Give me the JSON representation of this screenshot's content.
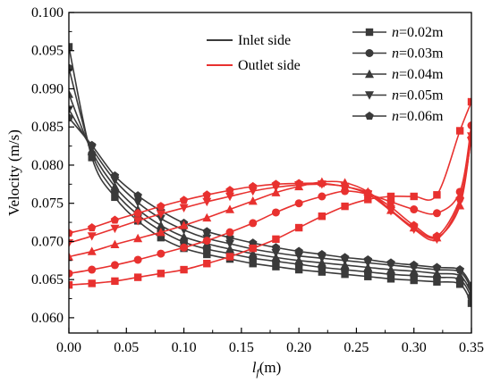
{
  "chart_data": {
    "type": "line",
    "xlabel_main": "l",
    "xlabel_sub": "f",
    "xlabel_unit": "(m)",
    "ylabel": "Velocity (m/s)",
    "xlim": [
      0.0,
      0.35
    ],
    "ylim": [
      0.058,
      0.1
    ],
    "xticks": [
      "0.00",
      "0.05",
      "0.10",
      "0.15",
      "0.20",
      "0.25",
      "0.30",
      "0.35"
    ],
    "yticks": [
      "0.060",
      "0.065",
      "0.070",
      "0.075",
      "0.080",
      "0.085",
      "0.090",
      "0.095",
      "0.100"
    ],
    "grid": false,
    "sides": [
      {
        "label": "Inlet side",
        "color": "#3a3a3a"
      },
      {
        "label": "Outlet side",
        "color": "#e8312f"
      }
    ],
    "legend_position": "top-right",
    "legend_prefix": "n",
    "legend_suffix": "=0.02m",
    "series": [
      {
        "name": "n=0.02m",
        "n_label": "n",
        "value_label": "=0.02m",
        "marker": "square",
        "inlet": {
          "x": [
            0.0,
            0.02,
            0.04,
            0.06,
            0.08,
            0.1,
            0.12,
            0.14,
            0.16,
            0.18,
            0.2,
            0.22,
            0.24,
            0.26,
            0.28,
            0.3,
            0.32,
            0.34,
            0.35
          ],
          "y": [
            0.0955,
            0.081,
            0.0758,
            0.0727,
            0.0705,
            0.0691,
            0.0683,
            0.0677,
            0.0671,
            0.0667,
            0.0663,
            0.066,
            0.0657,
            0.0654,
            0.0651,
            0.0649,
            0.0647,
            0.0644,
            0.0619
          ]
        },
        "outlet": {
          "x": [
            0.0,
            0.02,
            0.04,
            0.06,
            0.08,
            0.1,
            0.12,
            0.14,
            0.16,
            0.18,
            0.2,
            0.22,
            0.24,
            0.26,
            0.28,
            0.3,
            0.32,
            0.34,
            0.35
          ],
          "y": [
            0.0643,
            0.0645,
            0.0648,
            0.0653,
            0.0658,
            0.0663,
            0.0671,
            0.068,
            0.0691,
            0.0703,
            0.0718,
            0.0733,
            0.0746,
            0.0755,
            0.0759,
            0.0759,
            0.0761,
            0.0845,
            0.0883
          ]
        }
      },
      {
        "name": "n=0.03m",
        "n_label": "n",
        "value_label": "=0.03m",
        "marker": "circle",
        "inlet": {
          "x": [
            0.0,
            0.02,
            0.04,
            0.06,
            0.08,
            0.1,
            0.12,
            0.14,
            0.16,
            0.18,
            0.2,
            0.22,
            0.24,
            0.26,
            0.28,
            0.3,
            0.32,
            0.34,
            0.35
          ],
          "y": [
            0.0927,
            0.0815,
            0.0765,
            0.0735,
            0.0714,
            0.0699,
            0.069,
            0.0684,
            0.0678,
            0.0674,
            0.067,
            0.0666,
            0.0663,
            0.066,
            0.0657,
            0.0655,
            0.0653,
            0.065,
            0.0627
          ]
        },
        "outlet": {
          "x": [
            0.0,
            0.02,
            0.04,
            0.06,
            0.08,
            0.1,
            0.12,
            0.14,
            0.16,
            0.18,
            0.2,
            0.22,
            0.24,
            0.26,
            0.28,
            0.3,
            0.32,
            0.34,
            0.35
          ],
          "y": [
            0.0658,
            0.0663,
            0.0669,
            0.0676,
            0.0684,
            0.0692,
            0.0701,
            0.0712,
            0.0724,
            0.0738,
            0.075,
            0.0759,
            0.0766,
            0.0762,
            0.0752,
            0.0742,
            0.0737,
            0.0765,
            0.0852
          ]
        }
      },
      {
        "name": "n=0.04m",
        "n_label": "n",
        "value_label": "=0.04m",
        "marker": "triangle-up",
        "inlet": {
          "x": [
            0.0,
            0.02,
            0.04,
            0.06,
            0.08,
            0.1,
            0.12,
            0.14,
            0.16,
            0.18,
            0.2,
            0.22,
            0.24,
            0.26,
            0.28,
            0.3,
            0.32,
            0.34,
            0.35
          ],
          "y": [
            0.0893,
            0.0818,
            0.0772,
            0.0742,
            0.0721,
            0.0706,
            0.0697,
            0.069,
            0.0684,
            0.0679,
            0.0675,
            0.0672,
            0.0669,
            0.0666,
            0.0663,
            0.0661,
            0.0658,
            0.0655,
            0.0632
          ]
        },
        "outlet": {
          "x": [
            0.0,
            0.02,
            0.04,
            0.06,
            0.08,
            0.1,
            0.12,
            0.14,
            0.16,
            0.18,
            0.2,
            0.22,
            0.24,
            0.26,
            0.28,
            0.3,
            0.32,
            0.34,
            0.35
          ],
          "y": [
            0.068,
            0.0687,
            0.0696,
            0.0704,
            0.0712,
            0.0721,
            0.0731,
            0.0742,
            0.0753,
            0.0764,
            0.0772,
            0.0778,
            0.0777,
            0.0765,
            0.0741,
            0.0718,
            0.0705,
            0.0747,
            0.084
          ]
        }
      },
      {
        "name": "n=0.05m",
        "n_label": "n",
        "value_label": "=0.05m",
        "marker": "triangle-down",
        "inlet": {
          "x": [
            0.0,
            0.02,
            0.04,
            0.06,
            0.08,
            0.1,
            0.12,
            0.14,
            0.16,
            0.18,
            0.2,
            0.22,
            0.24,
            0.26,
            0.28,
            0.3,
            0.32,
            0.34,
            0.35
          ],
          "y": [
            0.0873,
            0.0822,
            0.078,
            0.0751,
            0.073,
            0.0715,
            0.0704,
            0.0697,
            0.069,
            0.0685,
            0.0681,
            0.0678,
            0.0675,
            0.0672,
            0.0669,
            0.0666,
            0.0663,
            0.066,
            0.0638
          ]
        },
        "outlet": {
          "x": [
            0.0,
            0.02,
            0.04,
            0.06,
            0.08,
            0.1,
            0.12,
            0.14,
            0.16,
            0.18,
            0.2,
            0.22,
            0.24,
            0.26,
            0.28,
            0.3,
            0.32,
            0.34,
            0.35
          ],
          "y": [
            0.0698,
            0.0707,
            0.0717,
            0.0727,
            0.0736,
            0.0744,
            0.0752,
            0.0759,
            0.0766,
            0.0771,
            0.0774,
            0.0775,
            0.0772,
            0.0762,
            0.074,
            0.0716,
            0.0703,
            0.0752,
            0.0838
          ]
        }
      },
      {
        "name": "n=0.06m",
        "n_label": "n",
        "value_label": "=0.06m",
        "marker": "pentagon",
        "inlet": {
          "x": [
            0.0,
            0.02,
            0.04,
            0.06,
            0.08,
            0.1,
            0.12,
            0.14,
            0.16,
            0.18,
            0.2,
            0.22,
            0.24,
            0.26,
            0.28,
            0.3,
            0.32,
            0.34,
            0.35
          ],
          "y": [
            0.0862,
            0.0826,
            0.0786,
            0.076,
            0.074,
            0.0724,
            0.0713,
            0.0705,
            0.0698,
            0.0692,
            0.0687,
            0.0683,
            0.0679,
            0.0676,
            0.0672,
            0.0669,
            0.0666,
            0.0663,
            0.0642
          ]
        },
        "outlet": {
          "x": [
            0.0,
            0.02,
            0.04,
            0.06,
            0.08,
            0.1,
            0.12,
            0.14,
            0.16,
            0.18,
            0.2,
            0.22,
            0.24,
            0.26,
            0.28,
            0.3,
            0.32,
            0.34,
            0.35
          ],
          "y": [
            0.0711,
            0.0718,
            0.0728,
            0.0737,
            0.0746,
            0.0754,
            0.0761,
            0.0767,
            0.0772,
            0.0775,
            0.0776,
            0.0776,
            0.0772,
            0.0764,
            0.0745,
            0.0721,
            0.0707,
            0.0756,
            0.0835
          ]
        }
      }
    ]
  }
}
